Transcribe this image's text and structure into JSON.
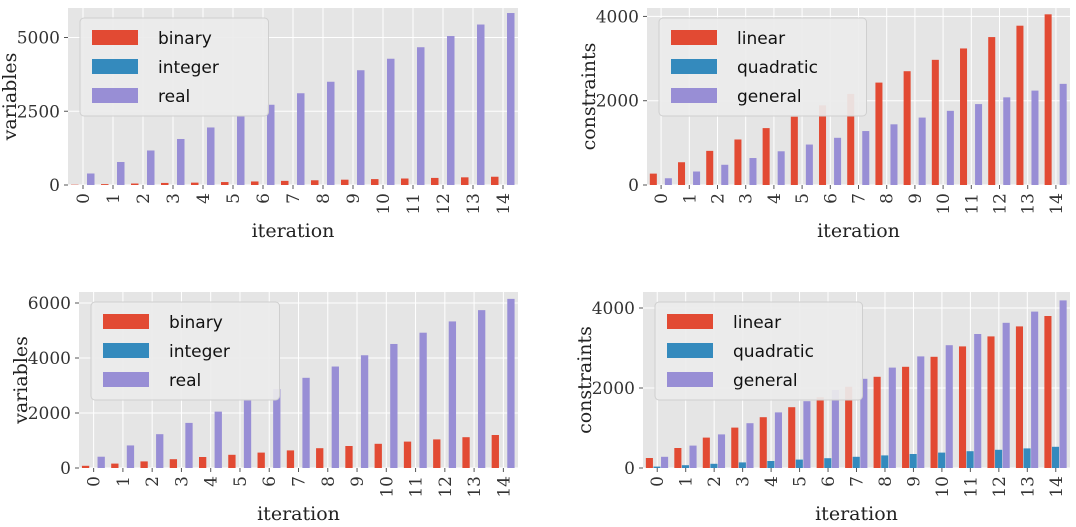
{
  "colors": {
    "background": "#e5e5e5",
    "grid": "#ffffff",
    "red": "#e24a33",
    "blue": "#348abd",
    "purple": "#988ed5"
  },
  "chart_data": [
    {
      "type": "bar",
      "xlabel": "iteration",
      "ylabel": "variables",
      "categories": [
        "0",
        "1",
        "2",
        "3",
        "4",
        "5",
        "6",
        "7",
        "8",
        "9",
        "10",
        "11",
        "12",
        "13",
        "14"
      ],
      "ylim": [
        0,
        6000
      ],
      "yticks": [
        0,
        2500,
        5000
      ],
      "ytick_labels": [
        "0",
        "2500",
        "5000"
      ],
      "grid": true,
      "legend": "top-left",
      "series": [
        {
          "name": "binary",
          "color": "#e24a33",
          "values": [
            10,
            30,
            50,
            70,
            80,
            100,
            120,
            140,
            160,
            180,
            200,
            220,
            240,
            260,
            280
          ]
        },
        {
          "name": "integer",
          "color": "#348abd",
          "values": [
            0,
            0,
            0,
            0,
            0,
            0,
            0,
            0,
            0,
            0,
            0,
            0,
            0,
            0,
            0
          ]
        },
        {
          "name": "real",
          "color": "#988ed5",
          "values": [
            390,
            780,
            1170,
            1560,
            1950,
            2330,
            2720,
            3110,
            3500,
            3890,
            4280,
            4670,
            5050,
            5440,
            5830
          ]
        }
      ]
    },
    {
      "type": "bar",
      "xlabel": "iteration",
      "ylabel": "constraints",
      "categories": [
        "0",
        "1",
        "2",
        "3",
        "4",
        "5",
        "6",
        "7",
        "8",
        "9",
        "10",
        "11",
        "12",
        "13",
        "14"
      ],
      "ylim": [
        0,
        4200
      ],
      "yticks": [
        0,
        2000,
        4000
      ],
      "ytick_labels": [
        "0",
        "2000",
        "4000"
      ],
      "grid": true,
      "legend": "top-left",
      "series": [
        {
          "name": "linear",
          "color": "#e24a33",
          "values": [
            270,
            540,
            810,
            1080,
            1350,
            1620,
            1890,
            2160,
            2430,
            2700,
            2970,
            3240,
            3510,
            3780,
            4050
          ]
        },
        {
          "name": "quadratic",
          "color": "#348abd",
          "values": [
            0,
            0,
            0,
            0,
            0,
            0,
            0,
            0,
            0,
            0,
            0,
            0,
            0,
            0,
            0
          ]
        },
        {
          "name": "general",
          "color": "#988ed5",
          "values": [
            160,
            320,
            480,
            640,
            800,
            960,
            1120,
            1280,
            1440,
            1600,
            1760,
            1920,
            2080,
            2240,
            2400
          ]
        }
      ]
    },
    {
      "type": "bar",
      "xlabel": "iteration",
      "ylabel": "variables",
      "categories": [
        "0",
        "1",
        "2",
        "3",
        "4",
        "5",
        "6",
        "7",
        "8",
        "9",
        "10",
        "11",
        "12",
        "13",
        "14"
      ],
      "ylim": [
        0,
        6400
      ],
      "yticks": [
        0,
        2000,
        4000,
        6000
      ],
      "ytick_labels": [
        "0",
        "2000",
        "4000",
        "6000"
      ],
      "grid": true,
      "legend": "top-left",
      "series": [
        {
          "name": "binary",
          "color": "#e24a33",
          "values": [
            80,
            160,
            240,
            320,
            400,
            480,
            560,
            640,
            720,
            800,
            880,
            960,
            1040,
            1120,
            1200
          ]
        },
        {
          "name": "integer",
          "color": "#348abd",
          "values": [
            0,
            0,
            0,
            0,
            0,
            0,
            0,
            0,
            0,
            0,
            0,
            0,
            0,
            0,
            0
          ]
        },
        {
          "name": "real",
          "color": "#988ed5",
          "values": [
            410,
            820,
            1230,
            1640,
            2050,
            2460,
            2870,
            3280,
            3690,
            4100,
            4510,
            4920,
            5330,
            5740,
            6150
          ]
        }
      ]
    },
    {
      "type": "bar",
      "xlabel": "iteration",
      "ylabel": "constraints",
      "categories": [
        "0",
        "1",
        "2",
        "3",
        "4",
        "5",
        "6",
        "7",
        "8",
        "9",
        "10",
        "11",
        "12",
        "13",
        "14"
      ],
      "ylim": [
        0,
        4400
      ],
      "yticks": [
        0,
        2000,
        4000
      ],
      "ytick_labels": [
        "0",
        "2000",
        "4000"
      ],
      "grid": true,
      "legend": "top-left",
      "series": [
        {
          "name": "linear",
          "color": "#e24a33",
          "values": [
            250,
            500,
            760,
            1010,
            1270,
            1520,
            1770,
            2030,
            2280,
            2530,
            2780,
            3040,
            3290,
            3540,
            3800
          ]
        },
        {
          "name": "quadratic",
          "color": "#348abd",
          "values": [
            35,
            70,
            105,
            140,
            175,
            210,
            245,
            280,
            315,
            350,
            385,
            420,
            455,
            490,
            530
          ]
        },
        {
          "name": "general",
          "color": "#988ed5",
          "values": [
            280,
            560,
            840,
            1120,
            1390,
            1670,
            1950,
            2230,
            2510,
            2790,
            3070,
            3350,
            3630,
            3910,
            4190
          ]
        }
      ]
    }
  ]
}
